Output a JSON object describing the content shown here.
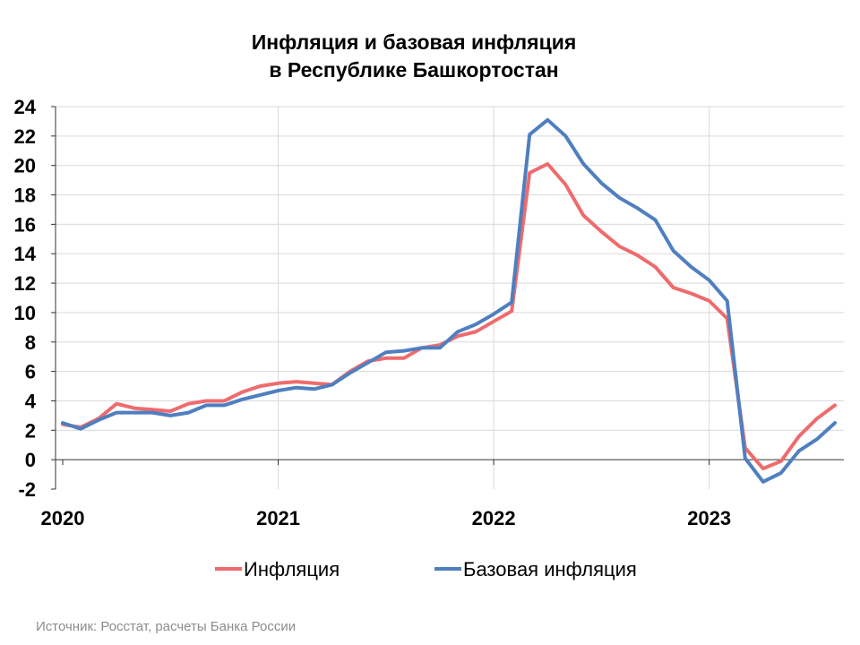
{
  "chart_data": {
    "type": "line",
    "title": [
      "Инфляция и базовая инфляция",
      "в  Республике Башкортостан"
    ],
    "ylim": [
      -2,
      24
    ],
    "yticks": [
      -2,
      0,
      2,
      4,
      6,
      8,
      10,
      12,
      14,
      16,
      18,
      20,
      22,
      24
    ],
    "x_start": "2020-01",
    "x_end": "2023-08",
    "xtick_labels": [
      "2020",
      "2021",
      "2022",
      "2023"
    ],
    "grid": true,
    "legend_position": "bottom",
    "series": [
      {
        "name": "Инфляция",
        "color": "#ee6b6e",
        "x": [
          "2020-01",
          "2020-02",
          "2020-03",
          "2020-04",
          "2020-05",
          "2020-06",
          "2020-07",
          "2020-08",
          "2020-09",
          "2020-10",
          "2020-11",
          "2020-12",
          "2021-01",
          "2021-02",
          "2021-03",
          "2021-04",
          "2021-05",
          "2021-06",
          "2021-07",
          "2021-08",
          "2021-09",
          "2021-10",
          "2021-11",
          "2021-12",
          "2022-01",
          "2022-02",
          "2022-03",
          "2022-04",
          "2022-05",
          "2022-06",
          "2022-07",
          "2022-08",
          "2022-09",
          "2022-10",
          "2022-11",
          "2022-12",
          "2023-01",
          "2023-02",
          "2023-03",
          "2023-04",
          "2023-05",
          "2023-06",
          "2023-07",
          "2023-08"
        ],
        "values": [
          2.4,
          2.2,
          2.8,
          3.8,
          3.5,
          3.4,
          3.3,
          3.8,
          4.0,
          4.0,
          4.6,
          5.0,
          5.2,
          5.3,
          5.2,
          5.1,
          6.0,
          6.7,
          6.9,
          6.9,
          7.6,
          7.8,
          8.4,
          8.7,
          9.4,
          10.1,
          19.5,
          20.1,
          18.7,
          16.6,
          15.5,
          14.5,
          13.9,
          13.1,
          11.7,
          11.3,
          10.8,
          9.6,
          0.8,
          -0.6,
          -0.1,
          1.6,
          2.8,
          3.7
        ]
      },
      {
        "name": "Базовая инфляция",
        "color": "#4f7fc0",
        "x": [
          "2020-01",
          "2020-02",
          "2020-03",
          "2020-04",
          "2020-05",
          "2020-06",
          "2020-07",
          "2020-08",
          "2020-09",
          "2020-10",
          "2020-11",
          "2020-12",
          "2021-01",
          "2021-02",
          "2021-03",
          "2021-04",
          "2021-05",
          "2021-06",
          "2021-07",
          "2021-08",
          "2021-09",
          "2021-10",
          "2021-11",
          "2021-12",
          "2022-01",
          "2022-02",
          "2022-03",
          "2022-04",
          "2022-05",
          "2022-06",
          "2022-07",
          "2022-08",
          "2022-09",
          "2022-10",
          "2022-11",
          "2022-12",
          "2023-01",
          "2023-02",
          "2023-03",
          "2023-04",
          "2023-05",
          "2023-06",
          "2023-07",
          "2023-08"
        ],
        "values": [
          2.5,
          2.1,
          2.7,
          3.2,
          3.2,
          3.2,
          3.0,
          3.2,
          3.7,
          3.7,
          4.1,
          4.4,
          4.7,
          4.9,
          4.8,
          5.1,
          5.9,
          6.6,
          7.3,
          7.4,
          7.6,
          7.6,
          8.7,
          9.2,
          9.9,
          10.7,
          22.1,
          23.1,
          22.0,
          20.1,
          18.8,
          17.8,
          17.1,
          16.3,
          14.2,
          13.1,
          12.2,
          10.8,
          0.1,
          -1.5,
          -0.9,
          0.6,
          1.4,
          2.5
        ]
      }
    ]
  },
  "source": "Источник: Росстат, расчеты Банка России"
}
